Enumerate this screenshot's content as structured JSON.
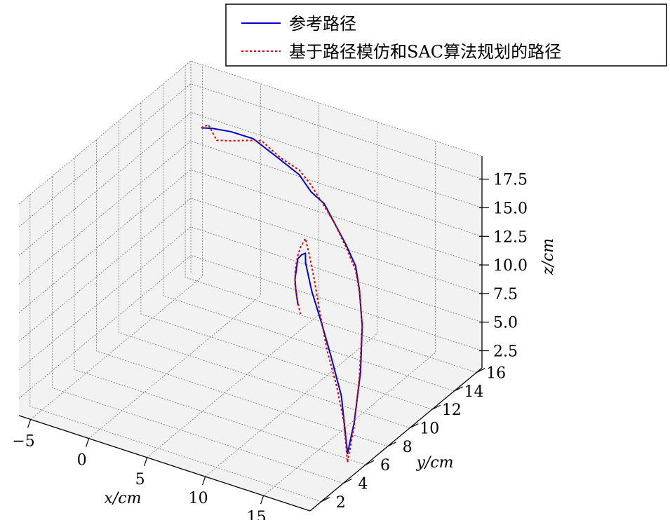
{
  "chart_data": {
    "type": "line",
    "projection": "3d",
    "xlabel": "x/cm",
    "ylabel": "y/cm",
    "zlabel": "z/cm",
    "xlim": [
      -6,
      19
    ],
    "ylim": [
      1,
      16.5
    ],
    "zlim": [
      1.0,
      19.5
    ],
    "x_ticks": [
      "−5",
      "0",
      "5",
      "10",
      "15"
    ],
    "y_ticks": [
      "2",
      "4",
      "6",
      "8",
      "10",
      "12",
      "14",
      "16"
    ],
    "z_ticks": [
      "2.5",
      "5.0",
      "7.5",
      "10.0",
      "12.5",
      "15.0",
      "17.5"
    ],
    "grid": true,
    "pane_color": "#f2f2f2",
    "legend_position": "top-right",
    "series": [
      {
        "name": "参考路径",
        "color": "#0000cc",
        "dash": "solid",
        "points": [
          {
            "x": -3.2,
            "y": 14.5,
            "z": 16.2
          },
          {
            "x": -2.0,
            "y": 14.2,
            "z": 16.8
          },
          {
            "x": 0.0,
            "y": 13.8,
            "z": 17.5
          },
          {
            "x": 2.5,
            "y": 13.2,
            "z": 18.2
          },
          {
            "x": 5.0,
            "y": 12.6,
            "z": 18.0
          },
          {
            "x": 7.5,
            "y": 12.1,
            "z": 17.6
          },
          {
            "x": 9.0,
            "y": 11.6,
            "z": 17.0
          },
          {
            "x": 10.5,
            "y": 11.2,
            "z": 16.8
          },
          {
            "x": 12.0,
            "y": 10.6,
            "z": 16.0
          },
          {
            "x": 13.5,
            "y": 10.0,
            "z": 15.2
          },
          {
            "x": 15.0,
            "y": 9.3,
            "z": 14.4
          },
          {
            "x": 16.0,
            "y": 8.6,
            "z": 13.2
          },
          {
            "x": 17.0,
            "y": 7.8,
            "z": 11.0
          },
          {
            "x": 17.8,
            "y": 6.8,
            "z": 8.0
          },
          {
            "x": 18.2,
            "y": 5.8,
            "z": 4.5
          },
          {
            "x": 18.4,
            "y": 5.0,
            "z": 2.6
          },
          {
            "x": 17.5,
            "y": 5.4,
            "z": 7.0
          },
          {
            "x": 16.2,
            "y": 5.8,
            "z": 9.8
          },
          {
            "x": 15.0,
            "y": 6.2,
            "z": 12.0
          },
          {
            "x": 13.8,
            "y": 6.6,
            "z": 14.0
          },
          {
            "x": 12.9,
            "y": 7.0,
            "z": 15.8
          },
          {
            "x": 12.5,
            "y": 7.4,
            "z": 16.2
          },
          {
            "x": 11.8,
            "y": 7.8,
            "z": 15.5
          },
          {
            "x": 11.0,
            "y": 8.3,
            "z": 14.5
          },
          {
            "x": 10.4,
            "y": 8.8,
            "z": 13.0
          },
          {
            "x": 9.8,
            "y": 9.3,
            "z": 11.5
          },
          {
            "x": 9.4,
            "y": 9.8,
            "z": 10.0
          },
          {
            "x": 9.2,
            "y": 10.2,
            "z": 8.3
          }
        ]
      },
      {
        "name": "基于路径模仿和SAC算法规划的路径",
        "color": "#dd0000",
        "dash": "dotted",
        "points": [
          {
            "x": -3.2,
            "y": 14.5,
            "z": 16.2
          },
          {
            "x": -2.4,
            "y": 14.3,
            "z": 16.9
          },
          {
            "x": -1.5,
            "y": 14.1,
            "z": 16.0
          },
          {
            "x": 0.0,
            "y": 13.8,
            "z": 16.7
          },
          {
            "x": 2.0,
            "y": 13.3,
            "z": 17.8
          },
          {
            "x": 3.5,
            "y": 12.9,
            "z": 18.6
          },
          {
            "x": 5.5,
            "y": 12.5,
            "z": 18.1
          },
          {
            "x": 7.5,
            "y": 12.1,
            "z": 18.0
          },
          {
            "x": 9.0,
            "y": 11.6,
            "z": 17.6
          },
          {
            "x": 10.5,
            "y": 11.2,
            "z": 16.6
          },
          {
            "x": 12.0,
            "y": 10.6,
            "z": 16.0
          },
          {
            "x": 13.5,
            "y": 10.0,
            "z": 15.0
          },
          {
            "x": 15.0,
            "y": 9.3,
            "z": 14.0
          },
          {
            "x": 16.0,
            "y": 8.6,
            "z": 13.0
          },
          {
            "x": 17.0,
            "y": 7.8,
            "z": 11.0
          },
          {
            "x": 17.6,
            "y": 6.9,
            "z": 7.3
          },
          {
            "x": 18.2,
            "y": 5.8,
            "z": 4.2
          },
          {
            "x": 18.4,
            "y": 5.0,
            "z": 1.8
          },
          {
            "x": 17.8,
            "y": 5.3,
            "z": 5.0
          },
          {
            "x": 17.0,
            "y": 5.5,
            "z": 7.6
          },
          {
            "x": 15.8,
            "y": 5.9,
            "z": 10.0
          },
          {
            "x": 14.8,
            "y": 6.3,
            "z": 12.6
          },
          {
            "x": 14.0,
            "y": 6.6,
            "z": 15.2
          },
          {
            "x": 13.3,
            "y": 6.9,
            "z": 16.8
          },
          {
            "x": 12.6,
            "y": 7.3,
            "z": 17.6
          },
          {
            "x": 11.6,
            "y": 7.9,
            "z": 16.0
          },
          {
            "x": 11.0,
            "y": 8.3,
            "z": 14.8
          },
          {
            "x": 10.2,
            "y": 8.9,
            "z": 12.8
          },
          {
            "x": 9.7,
            "y": 9.4,
            "z": 11.0
          },
          {
            "x": 9.5,
            "y": 9.8,
            "z": 9.3
          },
          {
            "x": 9.4,
            "y": 10.2,
            "z": 7.6
          }
        ]
      }
    ]
  }
}
